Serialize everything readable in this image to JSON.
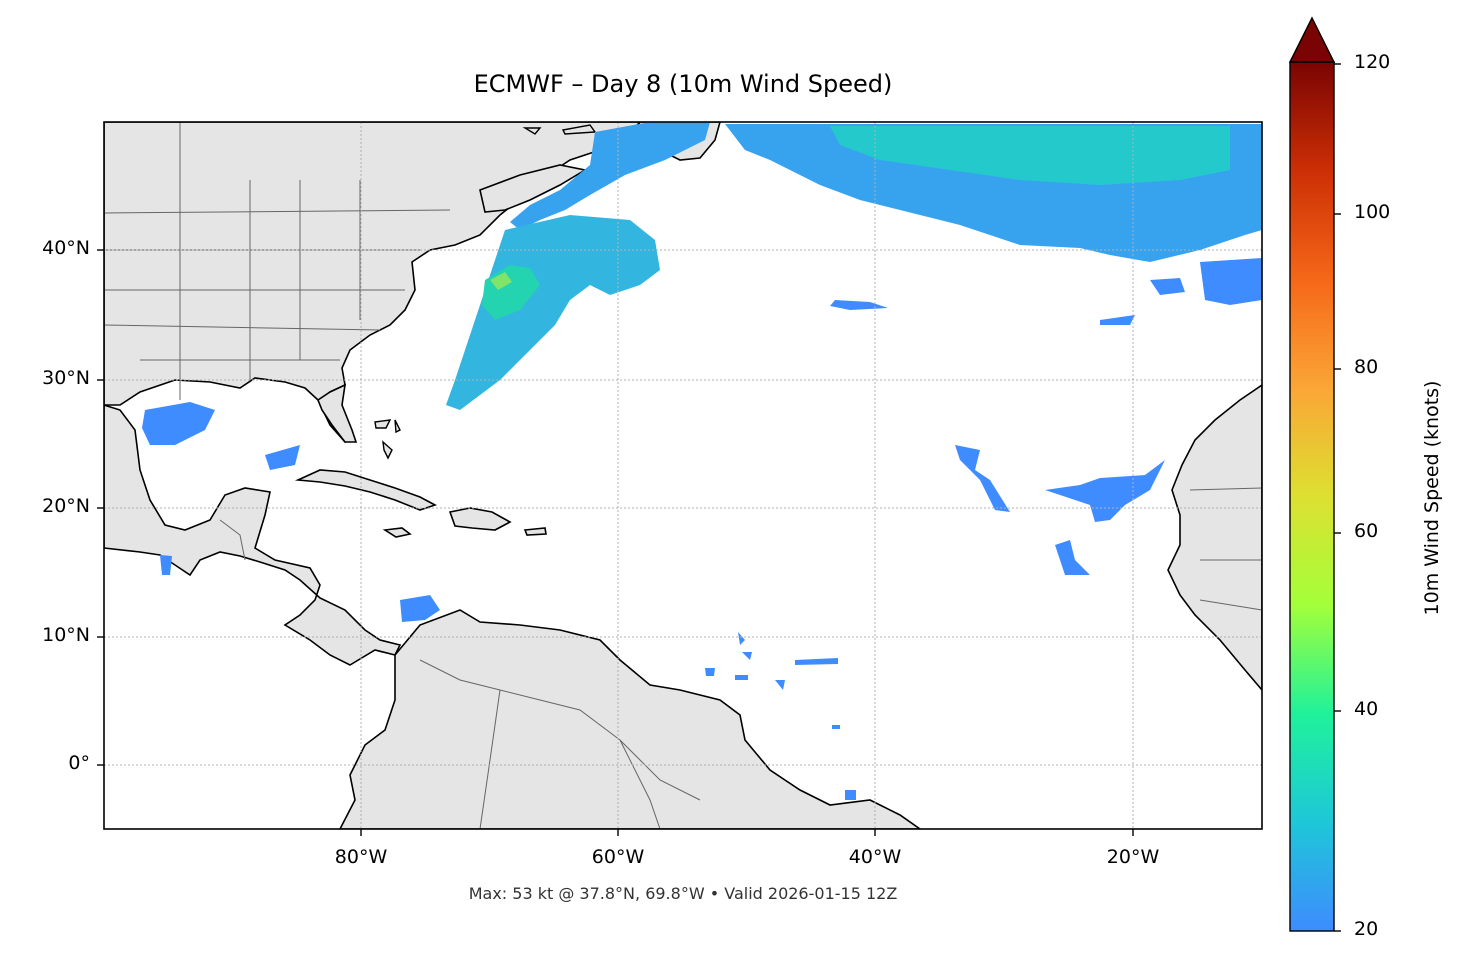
{
  "title": "ECMWF – Day 8 (10m Wind Speed)",
  "footer": "Max: 53 kt @ 37.8°N, 69.8°W • Valid 2026-01-15 12Z",
  "map": {
    "lon_range": [
      -100,
      -10
    ],
    "lat_range": [
      -5,
      50
    ],
    "lat_ticks": [
      {
        "value": 40,
        "label": "40°N"
      },
      {
        "value": 30,
        "label": "30°N"
      },
      {
        "value": 20,
        "label": "20°N"
      },
      {
        "value": 10,
        "label": "10°N"
      },
      {
        "value": 0,
        "label": "0°"
      }
    ],
    "lon_ticks": [
      {
        "value": -80,
        "label": "80°W"
      },
      {
        "value": -60,
        "label": "60°W"
      },
      {
        "value": -40,
        "label": "40°W"
      },
      {
        "value": -20,
        "label": "20°W"
      }
    ],
    "gridlines": true,
    "land_color": "#e5e5e5",
    "ocean_color": "#ffffff",
    "max_point": {
      "speed_kt": 53,
      "lat": 37.8,
      "lon": -69.8
    }
  },
  "colorbar": {
    "label": "10m Wind Speed (knots)",
    "min": 20,
    "max": 120,
    "extend": "max",
    "ticks": [
      {
        "value": 120,
        "label": "120"
      },
      {
        "value": 100,
        "label": "100"
      },
      {
        "value": 80,
        "label": "80"
      },
      {
        "value": 60,
        "label": "60"
      },
      {
        "value": 40,
        "label": "40"
      },
      {
        "value": 20,
        "label": "20"
      }
    ],
    "colors": [
      "#3e8cff",
      "#1ec7d8",
      "#1ff29a",
      "#a3ff3a",
      "#dde031",
      "#fba636",
      "#f56718",
      "#cc2f05",
      "#7a0403"
    ]
  }
}
